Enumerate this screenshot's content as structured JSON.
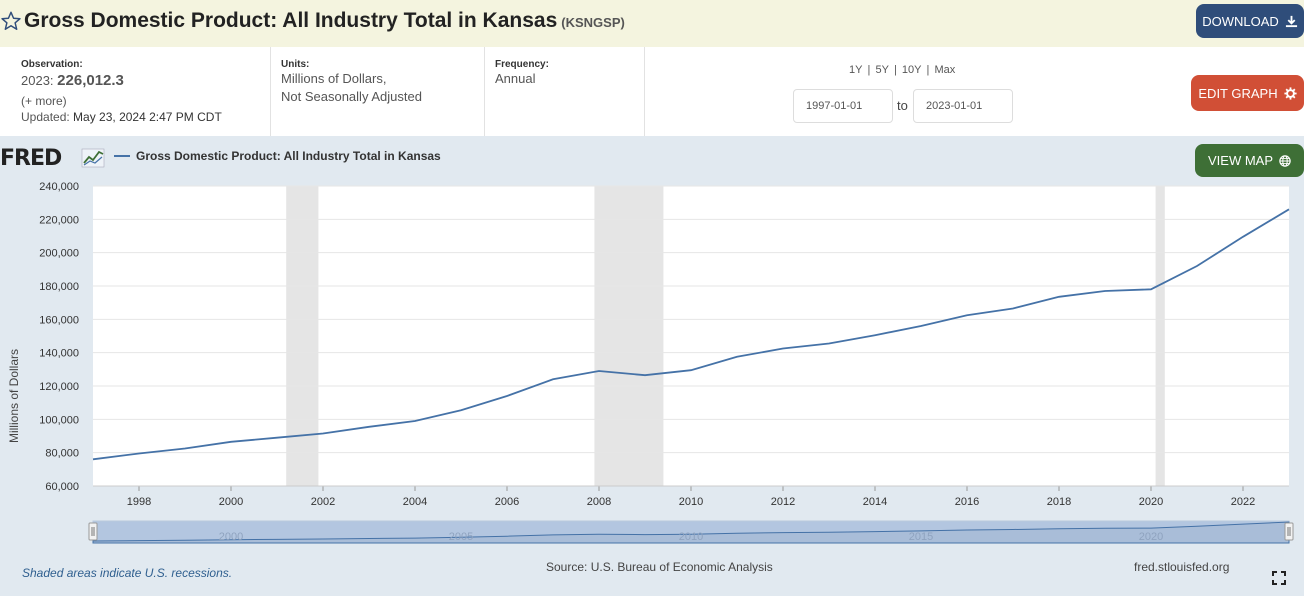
{
  "header": {
    "title": "Gross Domestic Product: All Industry Total in Kansas",
    "series_code": "(KSNGSP)",
    "download_label": "DOWNLOAD",
    "edit_graph_label": "EDIT GRAPH",
    "view_map_label": "VIEW MAP"
  },
  "meta": {
    "observation_label": "Observation:",
    "observation_period": "2023:",
    "observation_value": "226,012.3",
    "more_link": "(+ more)",
    "updated_label": "Updated:",
    "updated_value": "May 23, 2024 2:47 PM CDT",
    "units_label": "Units:",
    "units_line1": "Millions of Dollars,",
    "units_line2": "Not Seasonally Adjusted",
    "frequency_label": "Frequency:",
    "frequency_value": "Annual"
  },
  "range": {
    "links": [
      "1Y",
      "5Y",
      "10Y",
      "Max"
    ],
    "separator": "|",
    "start": "1997-01-01",
    "to_label": "to",
    "end": "2023-01-01"
  },
  "footer": {
    "recession_note": "Shaded areas indicate U.S. recessions.",
    "source": "Source: U.S. Bureau of Economic Analysis",
    "site": "fred.stlouisfed.org"
  },
  "colors": {
    "series_line": "#4572a7",
    "recession_shade": "#e5e5e5",
    "plot_bg": "#ffffff",
    "graph_bg": "#e1e9f0",
    "navigator_fill": "#a9bdd8"
  },
  "chart_data": {
    "type": "line",
    "title": "",
    "xlabel": "",
    "ylabel": "Millions of Dollars",
    "xlim": [
      1997,
      2023
    ],
    "ylim": [
      60000,
      240000
    ],
    "yticks": [
      60000,
      80000,
      100000,
      120000,
      140000,
      160000,
      180000,
      200000,
      220000,
      240000
    ],
    "ytick_labels": [
      "60,000",
      "80,000",
      "100,000",
      "120,000",
      "140,000",
      "160,000",
      "180,000",
      "200,000",
      "220,000",
      "240,000"
    ],
    "xticks": [
      1998,
      2000,
      2002,
      2004,
      2006,
      2008,
      2010,
      2012,
      2014,
      2016,
      2018,
      2020,
      2022
    ],
    "xtick_labels": [
      "1998",
      "2000",
      "2002",
      "2004",
      "2006",
      "2008",
      "2010",
      "2012",
      "2014",
      "2016",
      "2018",
      "2020",
      "2022"
    ],
    "grid": true,
    "legend": "top-left",
    "recessions": [
      [
        2001.2,
        2001.9
      ],
      [
        2007.9,
        2009.4
      ],
      [
        2020.1,
        2020.3
      ]
    ],
    "navigator_labels": [
      "2000",
      "2005",
      "2010",
      "2015",
      "2020"
    ],
    "series": [
      {
        "name": "Gross Domestic Product: All Industry Total in Kansas",
        "x": [
          1997,
          1998,
          1999,
          2000,
          2001,
          2002,
          2003,
          2004,
          2005,
          2006,
          2007,
          2008,
          2009,
          2010,
          2011,
          2012,
          2013,
          2014,
          2015,
          2016,
          2017,
          2018,
          2019,
          2020,
          2021,
          2022,
          2023
        ],
        "values": [
          76000,
          79500,
          82500,
          86500,
          89000,
          91500,
          95500,
          99000,
          105500,
          114000,
          124000,
          129000,
          126500,
          129500,
          137500,
          142500,
          145500,
          150500,
          156000,
          162500,
          166500,
          173500,
          177000,
          178000,
          192000,
          209500,
          226012.3
        ]
      }
    ]
  }
}
